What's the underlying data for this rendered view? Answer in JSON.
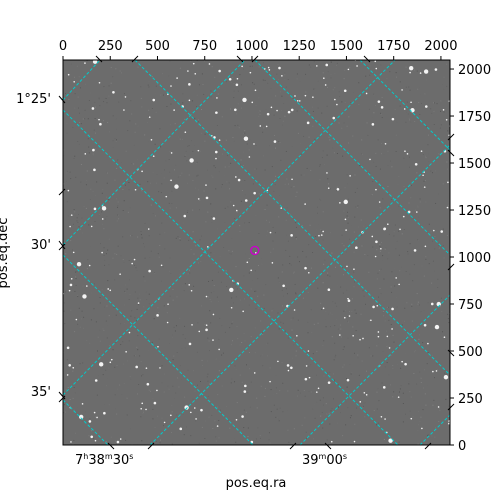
{
  "chart_data": {
    "type": "sky-image",
    "xlabel": "pos.eq.ra",
    "ylabel": "pos.eq.dec",
    "pixel_axes": {
      "x_range": [
        0,
        2048
      ],
      "y_range": [
        0,
        2048
      ],
      "x_ticks": [
        "0",
        "250",
        "500",
        "750",
        "1000",
        "1250",
        "1500",
        "1750",
        "2000"
      ],
      "y_ticks": [
        "0",
        "250",
        "500",
        "750",
        "1000",
        "1250",
        "1500",
        "1750",
        "2000"
      ]
    },
    "ra_ticks": [
      {
        "h": "7",
        "m": "38",
        "s": "30"
      },
      {
        "m": "39",
        "s": "00"
      }
    ],
    "dec_ticks": [
      "1°25'",
      "30'",
      "35'"
    ],
    "grid": true,
    "grid_color": "#00cccc",
    "marker": {
      "shape": "circle",
      "color": "#cc00cc",
      "x": 1015,
      "y": 1035
    },
    "background": "grayscale star field"
  }
}
